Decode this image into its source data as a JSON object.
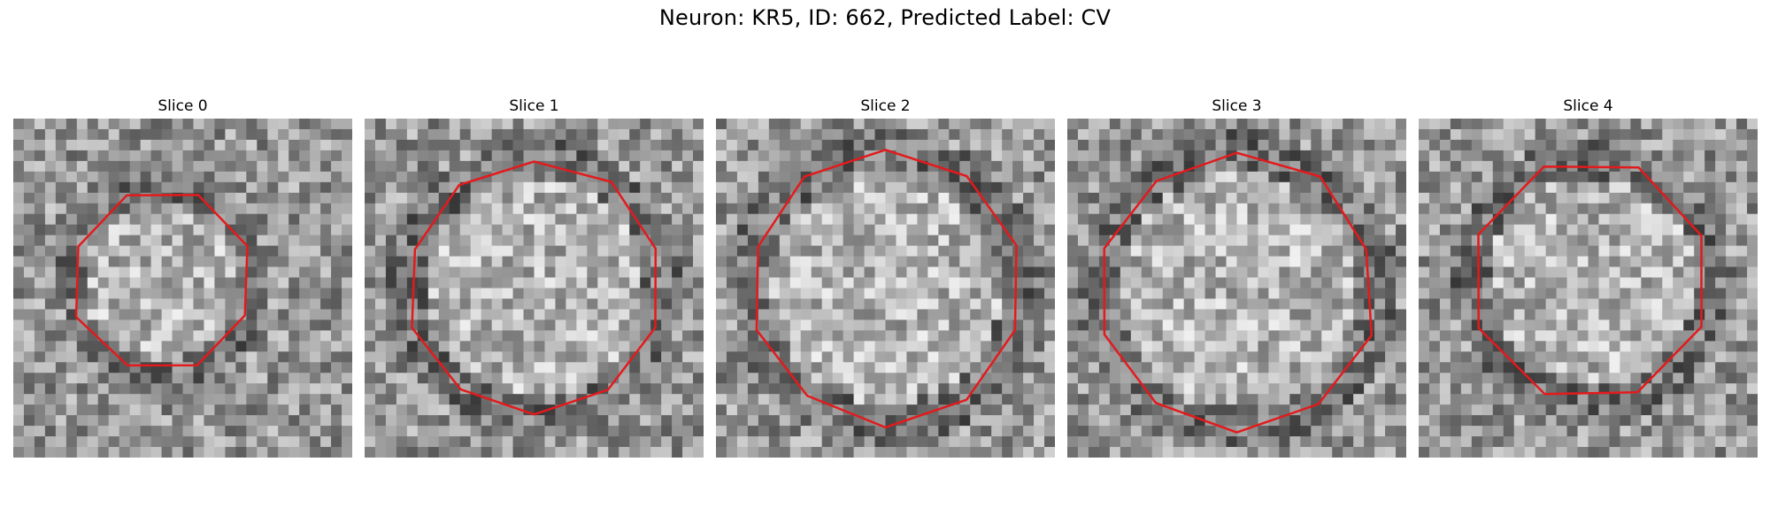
{
  "figure": {
    "title": "Neuron: KR5, ID: 662, Predicted Label: CV"
  },
  "panels": [
    {
      "title": "Slice 0"
    },
    {
      "title": "Slice 1"
    },
    {
      "title": "Slice 2"
    },
    {
      "title": "Slice 3"
    },
    {
      "title": "Slice 4"
    }
  ],
  "colors": {
    "outline": "#e31a1c",
    "background": "#ffffff"
  }
}
